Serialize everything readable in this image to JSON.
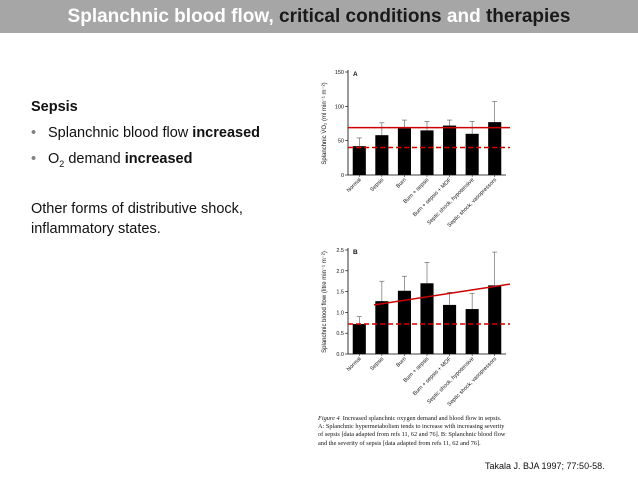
{
  "slide": {
    "title_part1": "Splanchnic blood flow,",
    "title_part2": "critical conditions",
    "title_part3": "and",
    "title_part4": "therapies",
    "heading": "Sepsis",
    "bullet1_text": "Splanchnic blood flow ",
    "bullet1_bold": "increased",
    "bullet2_prefix": "O",
    "bullet2_sub": "2",
    "bullet2_text": " demand ",
    "bullet2_bold": "increased",
    "paragraph_line1": "Other forms of distributive shock,",
    "paragraph_line2": "inflammatory states.",
    "reference": "Takala J. BJA 1997; 77:50-58.",
    "caption_label": "Figure 4",
    "caption_text": "Increased splanchnic oxygen demand and blood flow in sepsis. A: Splanchnic hypermetabolism tends to increase with increasing severity of sepsis [data adapted from refs 11, 62 and 76]. B: Splanchnic blood flow and the severity of sepsis [data adapted from refs 11, 62 and 76].",
    "colors": {
      "title_bg": "#a6a6a6",
      "title_text": "#ffffff",
      "title_dark": "#1a1a1a",
      "trend_line": "#cc0000",
      "bars": "#000000",
      "bullet_dot": "#808080"
    }
  },
  "chart_data": [
    {
      "type": "bar",
      "panel_label": "A",
      "ylabel": "Splanchnic V̇O₂ (ml min⁻¹ m⁻²)",
      "ylim": [
        0,
        150
      ],
      "yticks": [
        0,
        50,
        100,
        150
      ],
      "categories": [
        "Normal",
        "Sepsis",
        "Burn",
        "Burn + sepsis",
        "Burn + sepsis + MOF",
        "Septic shock, hypotensive",
        "Septic shock, vasopressors"
      ],
      "values": [
        42,
        58,
        68,
        65,
        72,
        60,
        77
      ],
      "errors": [
        12,
        18,
        12,
        13,
        8,
        18,
        30
      ],
      "reference_lines": [
        {
          "style": "solid",
          "color": "#cc0000",
          "y_start": 69,
          "y_end": 69
        },
        {
          "style": "dashed",
          "color": "#cc0000",
          "y_start": 40,
          "y_end": 40
        }
      ]
    },
    {
      "type": "bar",
      "panel_label": "B",
      "ylabel": "Splanchnic blood flow (litre min⁻¹ m⁻²)",
      "ylim": [
        0,
        2.5
      ],
      "yticks": [
        0.0,
        0.5,
        1.0,
        1.5,
        2.0,
        2.5
      ],
      "categories": [
        "Normal",
        "Sepsis",
        "Burn",
        "Burn + sepsis",
        "Burn + sepsis + MOF",
        "Septic shock, hypotensive",
        "Septic shock, vasopressors"
      ],
      "values": [
        0.72,
        1.27,
        1.52,
        1.7,
        1.18,
        1.08,
        1.65
      ],
      "errors": [
        0.18,
        0.48,
        0.35,
        0.5,
        0.3,
        0.38,
        0.8
      ],
      "reference_lines": [
        {
          "style": "solid",
          "color": "#cc0000",
          "y_start": 1.18,
          "y_end": 1.68
        },
        {
          "style": "dashed",
          "color": "#cc0000",
          "y_start": 0.72,
          "y_end": 0.72
        }
      ]
    }
  ]
}
